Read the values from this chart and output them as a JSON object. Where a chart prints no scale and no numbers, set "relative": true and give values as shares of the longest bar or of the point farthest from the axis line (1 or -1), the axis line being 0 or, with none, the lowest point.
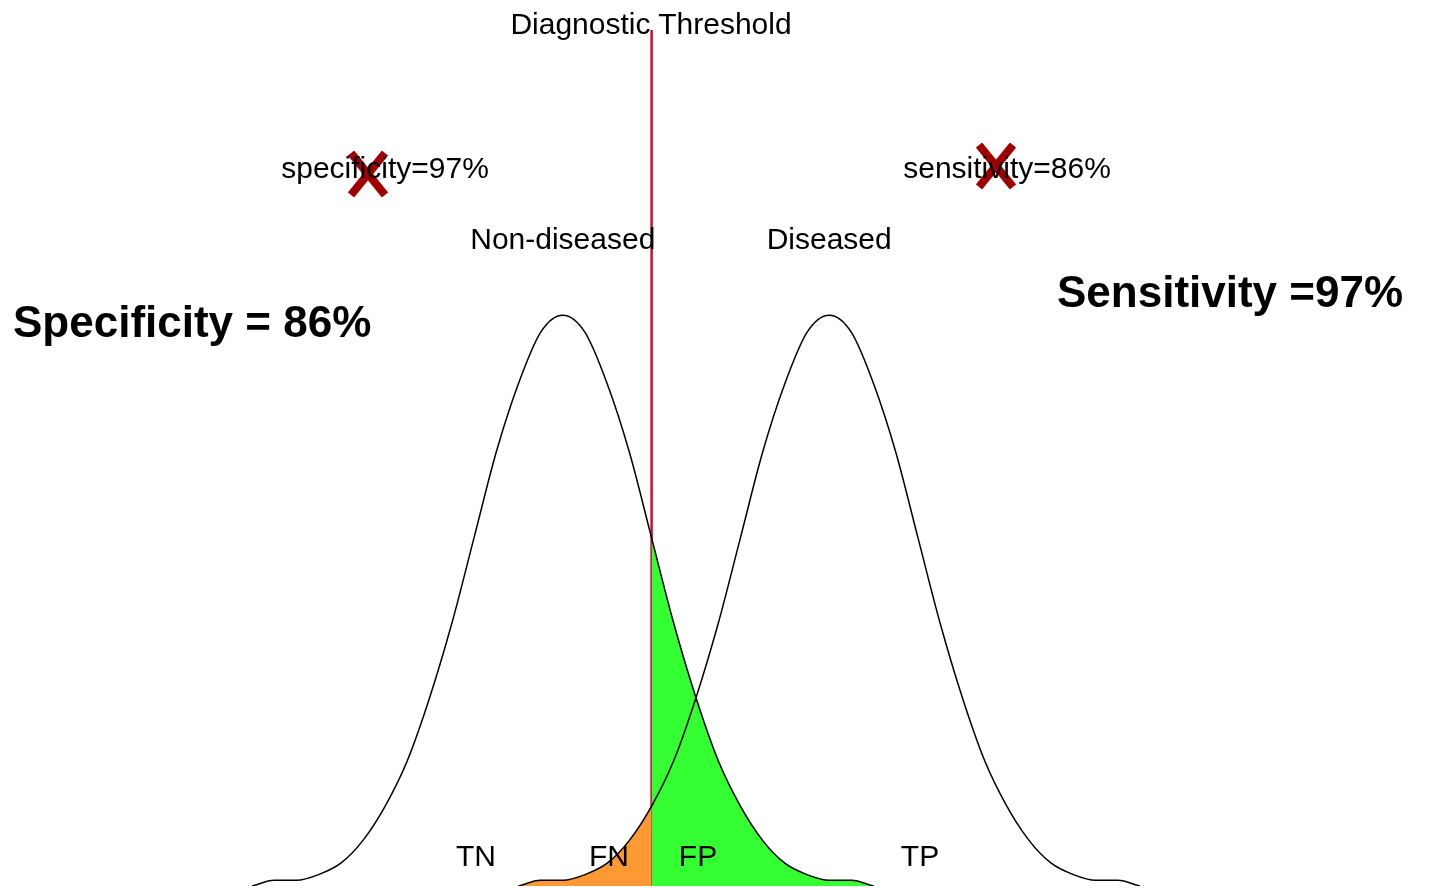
{
  "chart_data": {
    "type": "line",
    "relative": true,
    "legend": false,
    "tick_labels": false,
    "categories": [
      null,
      null,
      null,
      null,
      null,
      null,
      null,
      null,
      null,
      null,
      null,
      null,
      null,
      null,
      null,
      null,
      null,
      null,
      null,
      null,
      null,
      null,
      null,
      null,
      null,
      null,
      null,
      null,
      null,
      null,
      null,
      null,
      null,
      null,
      null,
      null,
      null,
      null,
      null,
      null,
      null
    ],
    "series": [
      {
        "name": "Non-diseased",
        "type": "line",
        "color": "#000000",
        "values": [
          0,
          0.01,
          0.01,
          0.02,
          0.04,
          0.08,
          0.14,
          0.22,
          0.33,
          0.46,
          0.61,
          0.76,
          0.88,
          0.97,
          1,
          0.97,
          0.88,
          0.76,
          0.61,
          0.46,
          0.33,
          0.22,
          0.14,
          0.08,
          0.04,
          0.02,
          0.01,
          0.01,
          0,
          null,
          null,
          null,
          null,
          null,
          null,
          null,
          null,
          null,
          null,
          null,
          null
        ]
      },
      {
        "name": "Diseased",
        "type": "line",
        "color": "#000000",
        "values": [
          null,
          null,
          null,
          null,
          null,
          null,
          null,
          null,
          null,
          null,
          null,
          null,
          0,
          0.01,
          0.01,
          0.02,
          0.04,
          0.08,
          0.14,
          0.22,
          0.33,
          0.46,
          0.61,
          0.76,
          0.88,
          0.97,
          1,
          0.97,
          0.88,
          0.76,
          0.61,
          0.46,
          0.33,
          0.22,
          0.14,
          0.08,
          0.04,
          0.02,
          0.01,
          0.01,
          0
        ]
      },
      {
        "type": "area",
        "color": "#33ff33",
        "values": [
          null,
          null,
          null,
          null,
          null,
          null,
          null,
          null,
          null,
          null,
          null,
          null,
          null,
          null,
          null,
          null,
          null,
          null,
          0.61,
          0.46,
          0.33,
          0.22,
          0.14,
          0.08,
          0.04,
          0.02,
          0.01,
          0.01,
          0,
          null,
          null,
          null,
          null,
          null,
          null,
          null,
          null,
          null,
          null,
          null,
          null
        ]
      },
      {
        "type": "area",
        "color": "#ff9933",
        "values": [
          null,
          null,
          null,
          null,
          null,
          null,
          null,
          null,
          null,
          null,
          null,
          null,
          0,
          0.01,
          0.01,
          0.02,
          0.04,
          0.08,
          0.14,
          null,
          null,
          null,
          null,
          null,
          null,
          null,
          null,
          null,
          null,
          null,
          null,
          null,
          null,
          null,
          null,
          null,
          null,
          null,
          null,
          null,
          null
        ]
      }
    ],
    "annotations": [
      "Diagnostic Threshold",
      "specificity=97%",
      "sensitivity=86%",
      "Specificity = 86%",
      "Sensitivity =97%",
      "TN",
      "FN",
      "FP",
      "TP"
    ]
  }
}
